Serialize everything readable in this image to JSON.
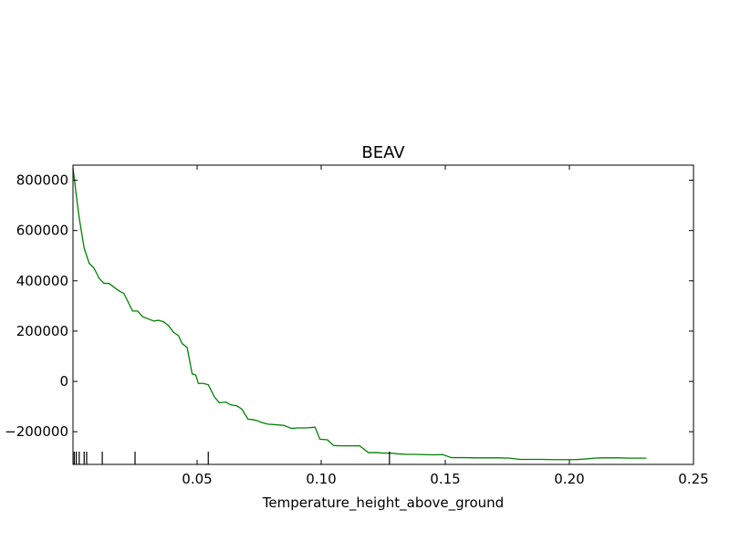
{
  "chart_data": {
    "type": "line",
    "title": "BEAV",
    "xlabel": "Temperature_height_above_ground",
    "ylabel": "",
    "xlim": [
      0.0,
      0.25
    ],
    "ylim": [
      -330000,
      860000
    ],
    "xticks": [
      0.05,
      0.1,
      0.15,
      0.2,
      0.25
    ],
    "xtick_labels": [
      "0.05",
      "0.10",
      "0.15",
      "0.20",
      "0.25"
    ],
    "yticks": [
      800000,
      600000,
      400000,
      200000,
      0,
      -200000
    ],
    "ytick_labels": [
      "800000",
      "600000",
      "400000",
      "200000",
      "0",
      "−200000"
    ],
    "grid": false,
    "line_color": "#008000",
    "rug_color": "#000000",
    "rug_x": [
      0.0005,
      0.0013,
      0.0025,
      0.0045,
      0.0055,
      0.0118,
      0.025,
      0.0545,
      0.1275
    ],
    "series": [
      {
        "x": [
          0.0,
          0.0012,
          0.0025,
          0.0045,
          0.0065,
          0.0085,
          0.0105,
          0.0125,
          0.0145,
          0.0165,
          0.0185,
          0.0205,
          0.0225,
          0.024,
          0.026,
          0.028,
          0.0305,
          0.0325,
          0.0345,
          0.0365,
          0.0385,
          0.0405,
          0.0425,
          0.044,
          0.046,
          0.048,
          0.0495,
          0.0505,
          0.0525,
          0.0545,
          0.057,
          0.059,
          0.0615,
          0.0635,
          0.066,
          0.068,
          0.0705,
          0.0725,
          0.0745,
          0.076,
          0.0785,
          0.0815,
          0.085,
          0.088,
          0.0905,
          0.094,
          0.0975,
          0.0995,
          0.1025,
          0.105,
          0.1075,
          0.1095,
          0.1125,
          0.1155,
          0.119,
          0.1225,
          0.125,
          0.128,
          0.131,
          0.1345,
          0.138,
          0.1415,
          0.1455,
          0.149,
          0.1525,
          0.1555,
          0.158,
          0.1625,
          0.167,
          0.1715,
          0.176,
          0.18,
          0.1845,
          0.189,
          0.1935,
          0.198,
          0.2025,
          0.207,
          0.21,
          0.213,
          0.216,
          0.22,
          0.224,
          0.2275,
          0.231
        ],
        "y": [
          850000,
          750000,
          650000,
          530000,
          470000,
          450000,
          410000,
          390000,
          390000,
          375000,
          360000,
          350000,
          310000,
          280000,
          280000,
          258000,
          248000,
          240000,
          243000,
          237000,
          222000,
          195000,
          182000,
          150000,
          135000,
          30000,
          25000,
          -8000,
          -8000,
          -13000,
          -62000,
          -85000,
          -82000,
          -93000,
          -97000,
          -110000,
          -150000,
          -152000,
          -157000,
          -163000,
          -170000,
          -172000,
          -175000,
          -187000,
          -185000,
          -185000,
          -182000,
          -230000,
          -232000,
          -255000,
          -256000,
          -256000,
          -256000,
          -256000,
          -283000,
          -283000,
          -285000,
          -285000,
          -288000,
          -290000,
          -290000,
          -291000,
          -292000,
          -291000,
          -303000,
          -303000,
          -303000,
          -304000,
          -304000,
          -304000,
          -305000,
          -310000,
          -310000,
          -310000,
          -311000,
          -311000,
          -311000,
          -308000,
          -305000,
          -304000,
          -304000,
          -304000,
          -305000,
          -305000,
          -305000
        ]
      }
    ]
  }
}
